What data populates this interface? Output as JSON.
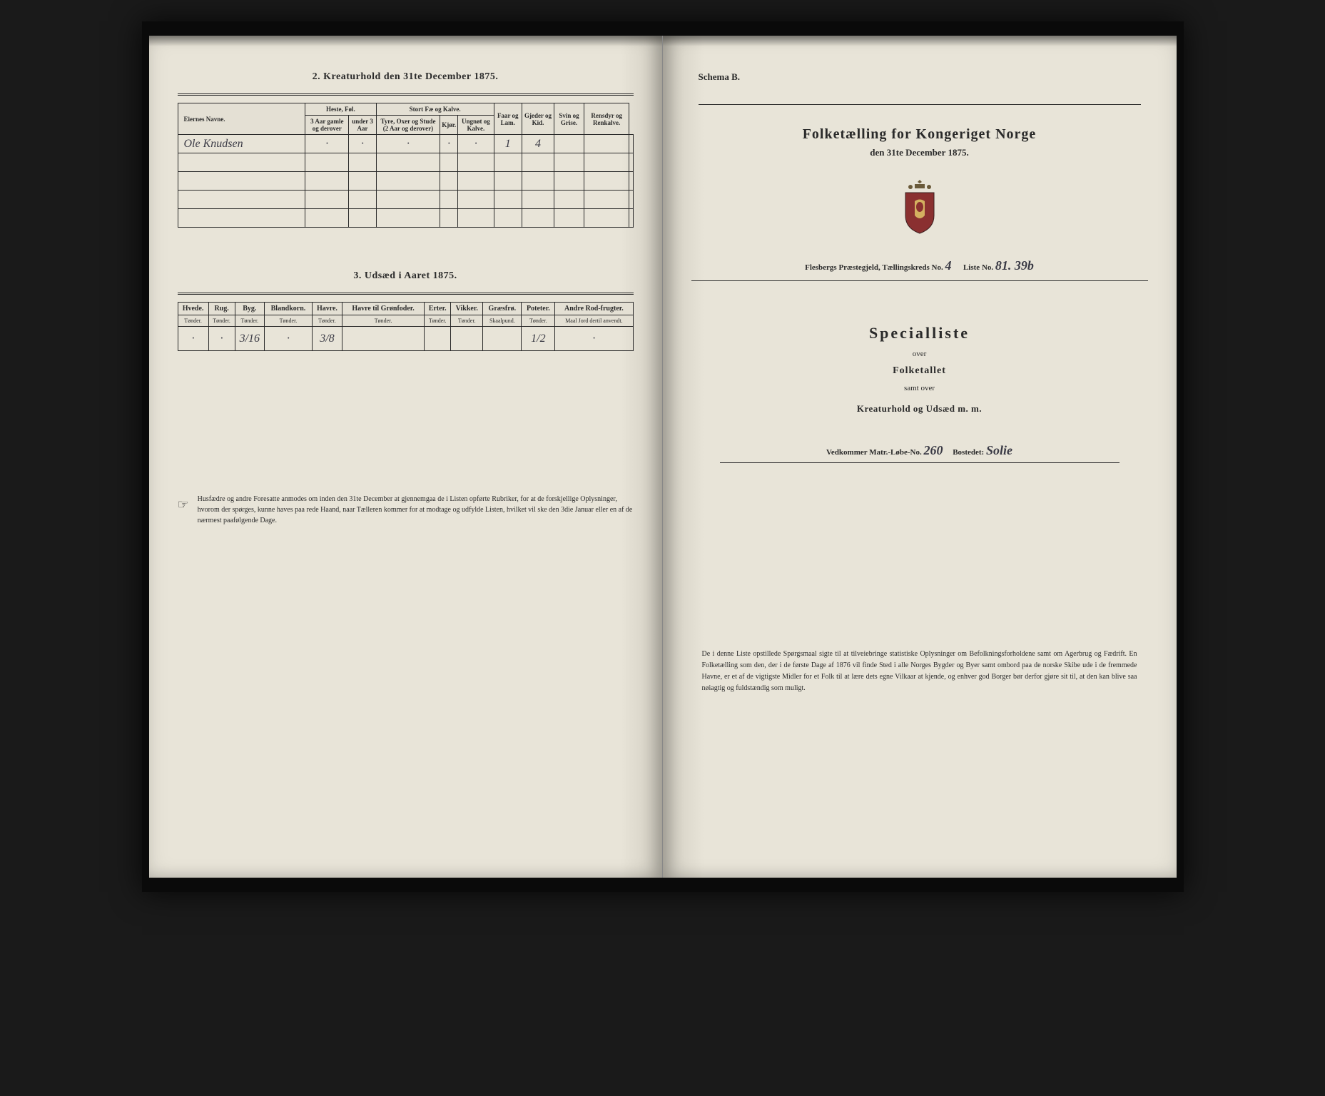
{
  "left": {
    "section2_title": "2. Kreaturhold den 31te December 1875.",
    "table1": {
      "headers": {
        "name": "Eiernes Navne.",
        "heste": "Heste, Føl.",
        "heste_sub1": "3 Aar gamle og derover",
        "heste_sub2": "under 3 Aar",
        "stort": "Stort Fæ og Kalve.",
        "stort_sub1": "Tyre, Oxer og Stude (2 Aar og derover)",
        "stort_sub2": "Kjør.",
        "stort_sub3": "Ungnøt og Kalve.",
        "faar": "Faar og Lam.",
        "gjeder": "Gjeder og Kid.",
        "svin": "Svin og Grise.",
        "rensdyr": "Rensdyr og Renkalve."
      },
      "rows": [
        {
          "name": "Ole Knudsen",
          "c1": "·",
          "c2": "·",
          "c3": "·",
          "c4": "·",
          "c5": "·",
          "c6": "1",
          "c7": "4",
          "c8": "",
          "c9": "",
          "c10": ""
        },
        {
          "name": "",
          "c1": "",
          "c2": "",
          "c3": "",
          "c4": "",
          "c5": "",
          "c6": "",
          "c7": "",
          "c8": "",
          "c9": "",
          "c10": ""
        },
        {
          "name": "",
          "c1": "",
          "c2": "",
          "c3": "",
          "c4": "",
          "c5": "",
          "c6": "",
          "c7": "",
          "c8": "",
          "c9": "",
          "c10": ""
        },
        {
          "name": "",
          "c1": "",
          "c2": "",
          "c3": "",
          "c4": "",
          "c5": "",
          "c6": "",
          "c7": "",
          "c8": "",
          "c9": "",
          "c10": ""
        },
        {
          "name": "",
          "c1": "",
          "c2": "",
          "c3": "",
          "c4": "",
          "c5": "",
          "c6": "",
          "c7": "",
          "c8": "",
          "c9": "",
          "c10": ""
        }
      ]
    },
    "section3_title": "3. Udsæd i Aaret 1875.",
    "table2": {
      "headers": [
        "Hvede.",
        "Rug.",
        "Byg.",
        "Blandkorn.",
        "Havre.",
        "Havre til Grønfoder.",
        "Erter.",
        "Vikker.",
        "Græsfrø.",
        "Poteter.",
        "Andre Rod-frugter."
      ],
      "subheaders": [
        "Tønder.",
        "Tønder.",
        "Tønder.",
        "Tønder.",
        "Tønder.",
        "Tønder.",
        "Tønder.",
        "Tønder.",
        "Skaalpund.",
        "Tønder.",
        "Maal Jord dertil anvendt."
      ],
      "row": [
        "·",
        "·",
        "3/16",
        "·",
        "3/8",
        "",
        "",
        "",
        "",
        "1/2",
        "·"
      ]
    },
    "footnote": "Husfædre og andre Foresatte anmodes om inden den 31te December at gjennemgaa de i Listen opførte Rubriker, for at de forskjellige Oplysninger, hvorom der spørges, kunne haves paa rede Haand, naar Tælleren kommer for at modtage og udfylde Listen, hvilket vil ske den 3die Januar eller en af de nærmest paafølgende Dage."
  },
  "right": {
    "schema": "Schema B.",
    "census_title": "Folketælling for Kongeriget Norge",
    "census_subtitle": "den 31te December 1875.",
    "district_prefix": "Flesbergs Præstegjeld, Tællingskreds No.",
    "district_no": "4",
    "liste_prefix": "Liste No.",
    "liste_no": "81. 39b",
    "special_title": "Specialliste",
    "over": "over",
    "folketallet": "Folketallet",
    "samt_over": "samt over",
    "kreaturhold": "Kreaturhold og Udsæd m. m.",
    "vedkommer": "Vedkommer Matr.-Løbe-No.",
    "matr_no": "260",
    "bostedet_label": "Bostedet:",
    "bostedet": "Solie",
    "footnote": "De i denne Liste opstillede Spørgsmaal sigte til at tilveiebringe statistiske Oplysninger om Befolkningsforholdene samt om Agerbrug og Fædrift. En Folketælling som den, der i de første Dage af 1876 vil finde Sted i alle Norges Bygder og Byer samt ombord paa de norske Skibe ude i de fremmede Havne, er et af de vigtigste Midler for et Folk til at lære dets egne Vilkaar at kjende, og enhver god Borger bør derfor gjøre sit til, at den kan blive saa nøiagtig og fuldstændig som muligt."
  }
}
